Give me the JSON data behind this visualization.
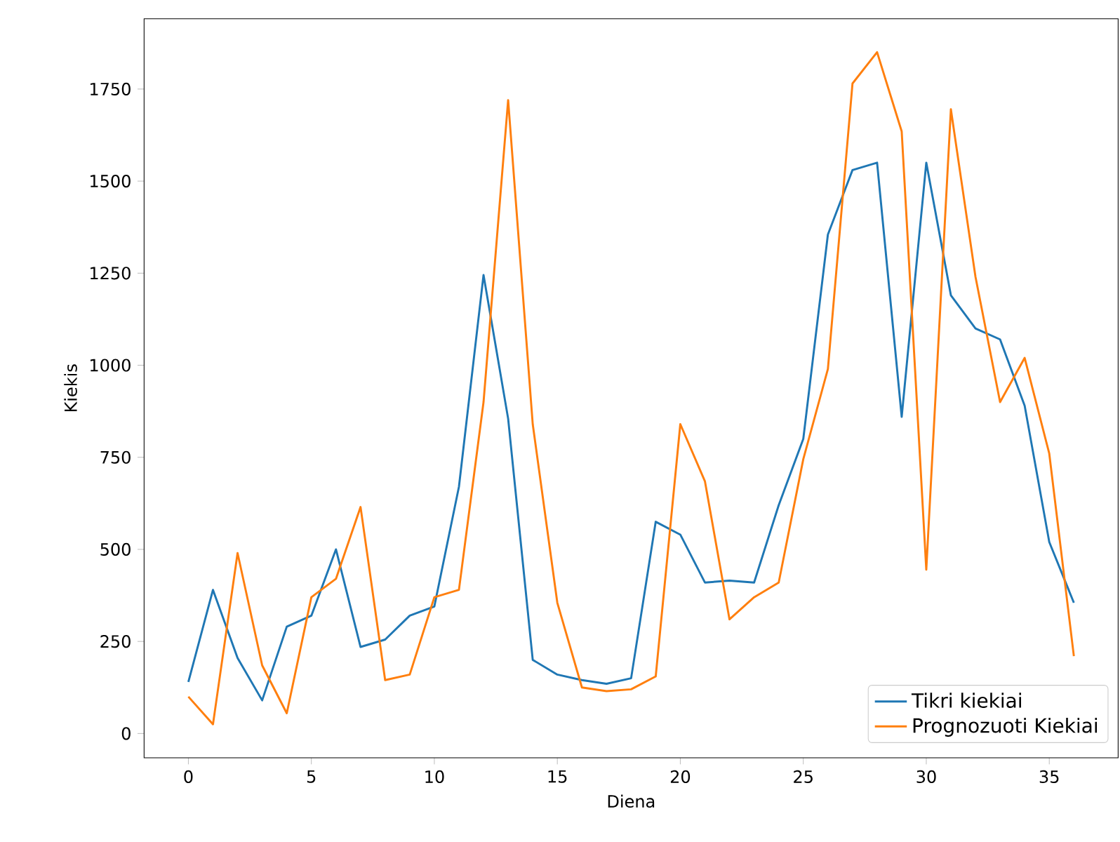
{
  "chart_data": {
    "type": "line",
    "xlabel": "Diena",
    "ylabel": "Kiekis",
    "x": [
      0,
      1,
      2,
      3,
      4,
      5,
      6,
      7,
      8,
      9,
      10,
      11,
      12,
      13,
      14,
      15,
      16,
      17,
      18,
      19,
      20,
      21,
      22,
      23,
      24,
      25,
      26,
      27,
      28,
      29,
      30,
      31,
      32,
      33,
      34,
      35,
      36
    ],
    "series": [
      {
        "name": "Tikri kiekiai",
        "color": "#1f77b4",
        "values": [
          140,
          390,
          205,
          90,
          290,
          320,
          500,
          235,
          255,
          320,
          345,
          670,
          1245,
          855,
          200,
          160,
          145,
          135,
          150,
          575,
          540,
          410,
          415,
          410,
          620,
          800,
          1355,
          1530,
          1550,
          860,
          1550,
          1190,
          1100,
          1070,
          890,
          520,
          355
        ]
      },
      {
        "name": "Prognozuoti Kiekiai",
        "color": "#ff7f0e",
        "values": [
          100,
          25,
          490,
          185,
          55,
          370,
          420,
          615,
          145,
          160,
          370,
          390,
          900,
          1720,
          840,
          355,
          125,
          115,
          120,
          155,
          840,
          685,
          310,
          370,
          410,
          745,
          990,
          1765,
          1850,
          1635,
          445,
          1695,
          1240,
          900,
          1020,
          760,
          210
        ]
      }
    ],
    "xlim": [
      -1.8,
      37.8
    ],
    "ylim": [
      -66,
      1941
    ],
    "xticks": [
      0,
      5,
      10,
      15,
      20,
      25,
      30,
      35
    ],
    "yticks": [
      0,
      250,
      500,
      750,
      1000,
      1250,
      1500,
      1750
    ],
    "grid": false,
    "legend": "bottom right",
    "line_style": "solid",
    "marker": "none"
  }
}
